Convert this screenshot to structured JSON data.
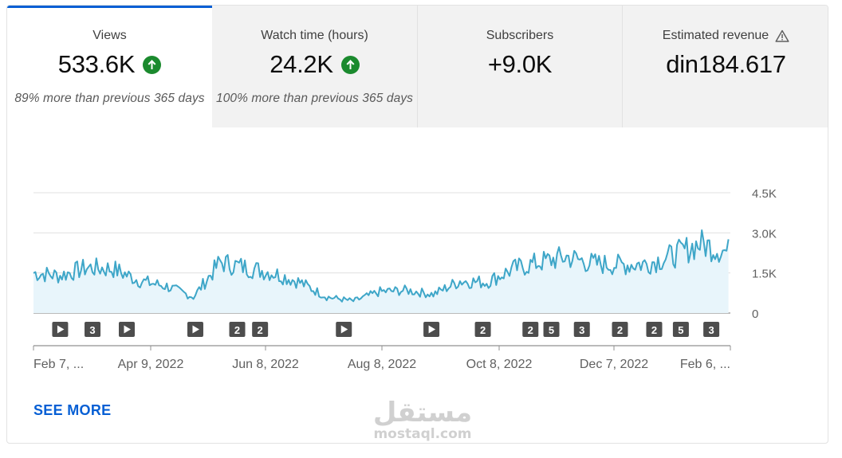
{
  "metrics": [
    {
      "label": "Views",
      "value": "533.6K",
      "compare": "89% more than previous 365 days",
      "trend_icon": "arrow-up-circle-icon"
    },
    {
      "label": "Watch time (hours)",
      "value": "24.2K",
      "compare": "100% more than previous 365 days",
      "trend_icon": "arrow-up-circle-icon"
    },
    {
      "label": "Subscribers",
      "value": "+9.0K",
      "compare": ""
    },
    {
      "label": "Estimated revenue",
      "value": "din184.617",
      "compare": "",
      "status_icon": "warning-icon"
    }
  ],
  "colors": {
    "accent": "#065fd4",
    "line": "#3ea6c8",
    "fill": "#e8f5fb",
    "trend_up": "#1b8a2e",
    "marker": "#4d4d4d"
  },
  "chart_data": {
    "type": "area",
    "title": "",
    "xlabel": "",
    "ylabel": "",
    "ylim": [
      0,
      4500
    ],
    "yticks": [
      0,
      1500,
      3000,
      4500
    ],
    "ytick_labels": [
      "0",
      "1.5K",
      "3.0K",
      "4.5K"
    ],
    "xtick_labels": [
      "Feb 7, ...",
      "Apr 9, 2022",
      "Jun 8, 2022",
      "Aug 8, 2022",
      "Oct 8, 2022",
      "Dec 7, 2022",
      "Feb 6, ..."
    ],
    "grid": true,
    "x": [
      "2022-02-07",
      "2022-02-21",
      "2022-03-07",
      "2022-03-21",
      "2022-04-04",
      "2022-04-18",
      "2022-05-02",
      "2022-05-16",
      "2022-05-30",
      "2022-06-13",
      "2022-06-27",
      "2022-07-11",
      "2022-07-25",
      "2022-08-08",
      "2022-08-22",
      "2022-09-05",
      "2022-09-19",
      "2022-10-03",
      "2022-10-17",
      "2022-10-31",
      "2022-11-14",
      "2022-11-28",
      "2022-12-12",
      "2022-12-26",
      "2023-01-09",
      "2023-01-23",
      "2023-02-06"
    ],
    "series": [
      {
        "values": [
          1500,
          1400,
          1700,
          1650,
          1200,
          1000,
          600,
          1900,
          1700,
          1500,
          1150,
          600,
          450,
          800,
          850,
          700,
          1200,
          1150,
          1650,
          1900,
          2100,
          1850,
          1800,
          1850,
          2150,
          2600,
          2300
        ]
      }
    ],
    "annotations": [
      {
        "date": "2022-02-21",
        "label": "play-icon"
      },
      {
        "date": "2022-03-10",
        "label": "3"
      },
      {
        "date": "2022-03-28",
        "label": "play-icon"
      },
      {
        "date": "2022-05-03",
        "label": "play-icon"
      },
      {
        "date": "2022-05-25",
        "label": "2"
      },
      {
        "date": "2022-06-06",
        "label": "2"
      },
      {
        "date": "2022-07-20",
        "label": "play-icon"
      },
      {
        "date": "2022-09-04",
        "label": "play-icon"
      },
      {
        "date": "2022-10-01",
        "label": "2"
      },
      {
        "date": "2022-10-26",
        "label": "2"
      },
      {
        "date": "2022-11-06",
        "label": "5"
      },
      {
        "date": "2022-11-22",
        "label": "3"
      },
      {
        "date": "2022-12-12",
        "label": "2"
      },
      {
        "date": "2022-12-30",
        "label": "2"
      },
      {
        "date": "2023-01-13",
        "label": "5"
      },
      {
        "date": "2023-01-29",
        "label": "3"
      }
    ]
  },
  "see_more": "SEE MORE",
  "watermark": {
    "arabic": "مستقل",
    "latin": "mostaql.com"
  }
}
